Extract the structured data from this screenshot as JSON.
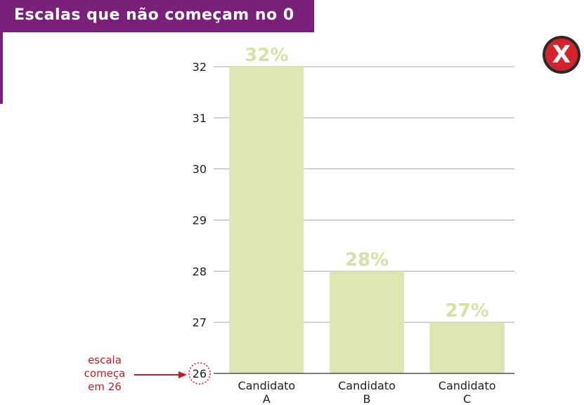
{
  "header": {
    "title": "Escalas que não começam no 0"
  },
  "badge": {
    "symbol": "X",
    "color": "#d4232a"
  },
  "annotation": {
    "lines": [
      "escala",
      "começa",
      "em 26"
    ],
    "color": "#c11b2d"
  },
  "chart_data": {
    "type": "bar",
    "categories": [
      [
        "Candidato",
        "A"
      ],
      [
        "Candidato",
        "B"
      ],
      [
        "Candidato",
        "C"
      ]
    ],
    "values": [
      32,
      28,
      27
    ],
    "data_labels": [
      "32%",
      "28%",
      "27%"
    ],
    "yticks": [
      26,
      27,
      28,
      29,
      30,
      31,
      32
    ],
    "ylim": [
      26,
      32
    ],
    "grid": true,
    "bar_color": "#dde6b0",
    "label_color": "#d6e2a4",
    "highlight_tick": "26"
  }
}
